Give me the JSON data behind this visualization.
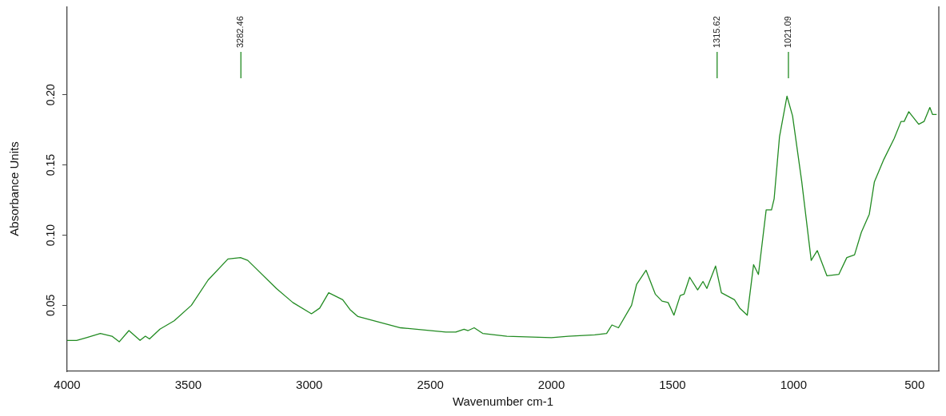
{
  "chart_data": {
    "type": "line",
    "xlabel": "Wavenumber cm-1",
    "ylabel": "Absorbance Units",
    "xlim": [
      4000,
      400
    ],
    "xticks": [
      4000,
      3500,
      3000,
      2500,
      2000,
      1500,
      1000,
      500
    ],
    "ylim": [
      0.003,
      0.263
    ],
    "yticks": [
      0.05,
      {
        "value": 0.1,
        "label": "0.10"
      },
      0.15,
      {
        "value": 0.2,
        "label": "0.20"
      }
    ],
    "grid": false,
    "legend": false,
    "marker": "none",
    "line_style": "solid",
    "annotations": [
      {
        "text": "3282.46",
        "x": 3282.46
      },
      {
        "text": "1315.62",
        "x": 1315.62
      },
      {
        "text": "1021.09",
        "x": 1021.09
      }
    ],
    "series": [
      {
        "color": "#228b22",
        "x": [
          4000,
          3961,
          3920,
          3863,
          3815,
          3785,
          3745,
          3699,
          3677,
          3660,
          3617,
          3558,
          3487,
          3418,
          3336,
          3284,
          3254,
          3136,
          3068,
          2991,
          2957,
          2920,
          2862,
          2832,
          2799,
          2623,
          2436,
          2395,
          2361,
          2344,
          2319,
          2284,
          2184,
          2000,
          1930,
          1821,
          1772,
          1750,
          1723,
          1669,
          1648,
          1609,
          1571,
          1543,
          1518,
          1494,
          1468,
          1452,
          1429,
          1396,
          1374,
          1358,
          1322,
          1298,
          1244,
          1222,
          1191,
          1165,
          1145,
          1113,
          1091,
          1080,
          1058,
          1027,
          1004,
          966,
          927,
          902,
          862,
          813,
          780,
          748,
          720,
          687,
          666,
          627,
          584,
          556,
          543,
          524,
          483,
          461,
          437,
          426,
          409
        ],
        "values": [
          0.025,
          0.025,
          0.027,
          0.03,
          0.028,
          0.024,
          0.032,
          0.025,
          0.028,
          0.026,
          0.033,
          0.039,
          0.05,
          0.068,
          0.083,
          0.084,
          0.082,
          0.062,
          0.052,
          0.044,
          0.048,
          0.059,
          0.054,
          0.047,
          0.042,
          0.034,
          0.031,
          0.031,
          0.033,
          0.032,
          0.034,
          0.03,
          0.028,
          0.027,
          0.028,
          0.029,
          0.03,
          0.036,
          0.034,
          0.05,
          0.065,
          0.075,
          0.058,
          0.053,
          0.052,
          0.043,
          0.057,
          0.058,
          0.07,
          0.061,
          0.067,
          0.062,
          0.078,
          0.059,
          0.054,
          0.048,
          0.043,
          0.079,
          0.072,
          0.118,
          0.118,
          0.126,
          0.17,
          0.199,
          0.185,
          0.138,
          0.082,
          0.089,
          0.071,
          0.072,
          0.084,
          0.086,
          0.102,
          0.115,
          0.138,
          0.154,
          0.169,
          0.181,
          0.181,
          0.188,
          0.179,
          0.181,
          0.191,
          0.186,
          0.186
        ]
      }
    ]
  }
}
